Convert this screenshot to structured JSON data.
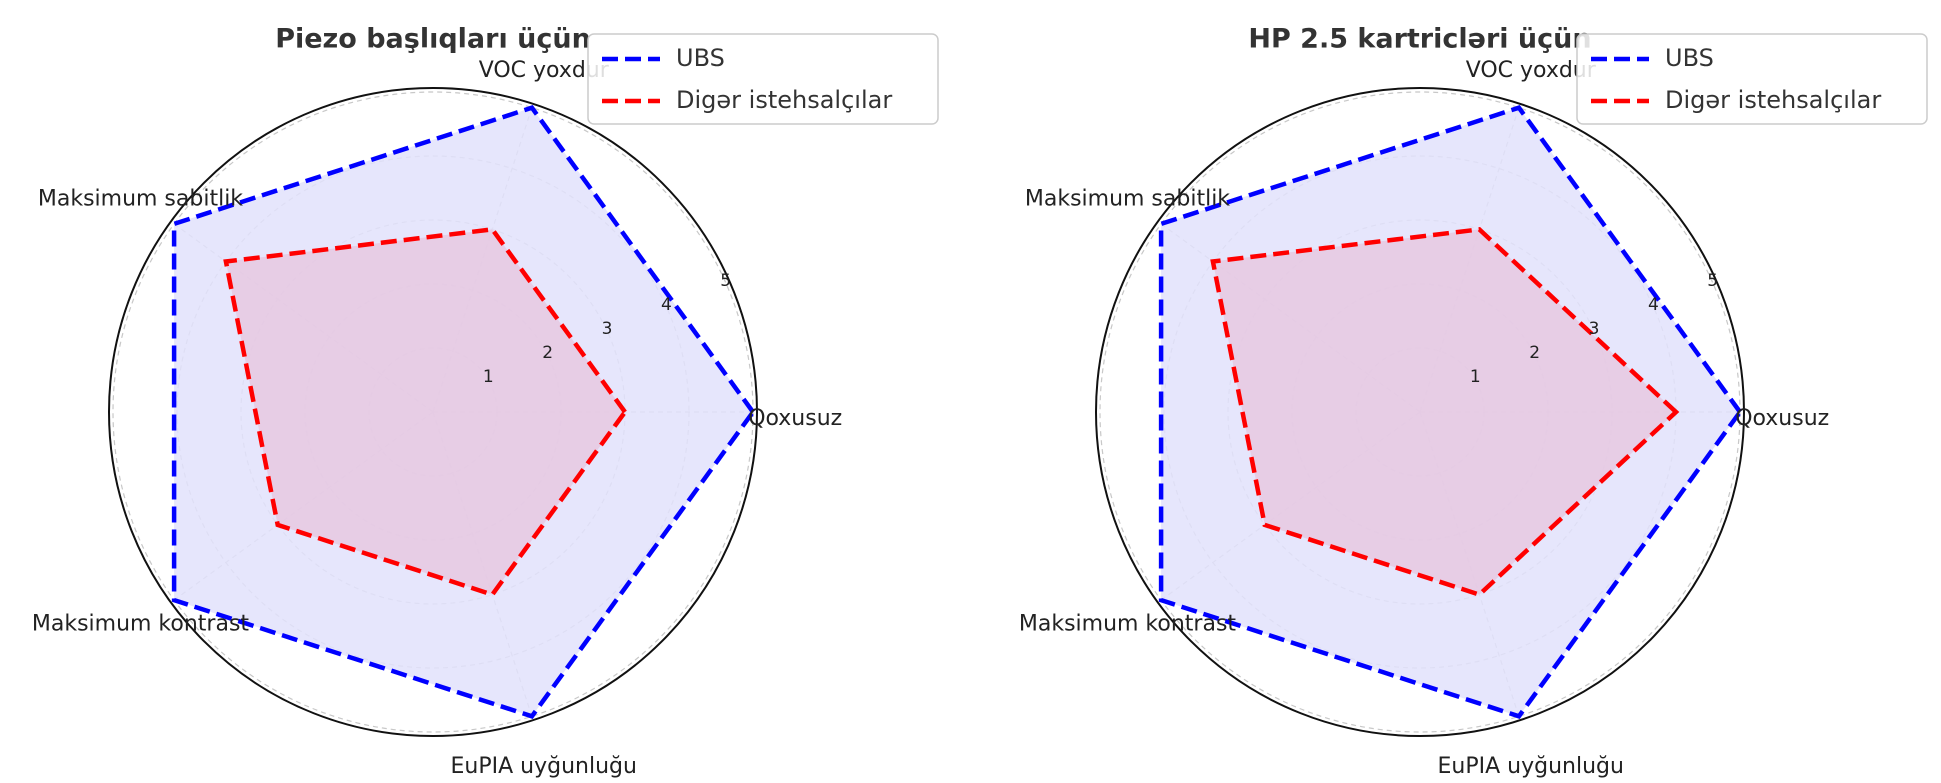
{
  "chart_data": [
    {
      "type": "radar",
      "title": "Piezo başlıqları üçün",
      "axes": [
        "Qoxusuz",
        "VOC yoxdur",
        "Maksimum sabitlik",
        "Maksimum kontrast",
        "EuPIA uyğunluğu"
      ],
      "rlim": [
        0,
        5
      ],
      "rticks": [
        "1",
        "2",
        "3",
        "4",
        "5"
      ],
      "grid": true,
      "legend_position": "top-right",
      "series": [
        {
          "name": "UBS",
          "values": [
            5,
            5,
            5,
            5,
            5
          ],
          "color": "#0000ff",
          "fill": "#e2e2fb"
        },
        {
          "name": "Digər istehsalçılar",
          "values": [
            3,
            3,
            4,
            3,
            3
          ],
          "color": "#ff0000",
          "fill": "#e6c8e0"
        }
      ]
    },
    {
      "type": "radar",
      "title": "HP 2.5 kartricləri üçün",
      "axes": [
        "Qoxusuz",
        "VOC yoxdur",
        "Maksimum sabitlik",
        "Maksimum kontrast",
        "EuPIA uyğunluğu"
      ],
      "rlim": [
        0,
        5
      ],
      "rticks": [
        "1",
        "2",
        "3",
        "4",
        "5"
      ],
      "grid": true,
      "legend_position": "top-right",
      "series": [
        {
          "name": "UBS",
          "values": [
            5,
            5,
            5,
            5,
            5
          ],
          "color": "#0000ff",
          "fill": "#e2e2fb"
        },
        {
          "name": "Digər istehsalçılar",
          "values": [
            4,
            3,
            4,
            3,
            3
          ],
          "color": "#ff0000",
          "fill": "#e6c8e0"
        }
      ]
    }
  ]
}
